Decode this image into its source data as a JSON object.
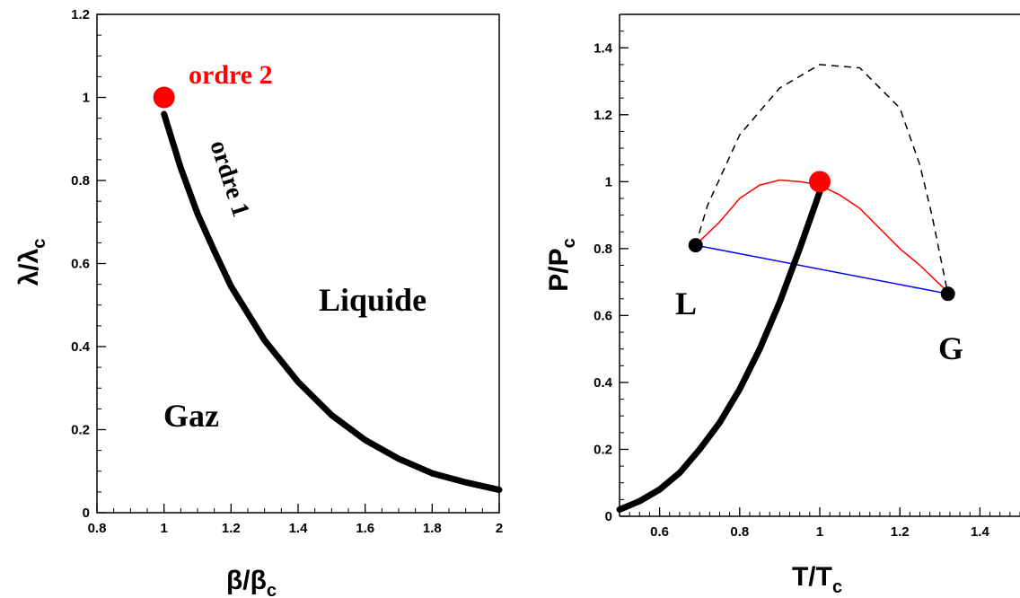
{
  "chart_data": [
    {
      "type": "line",
      "xlabel": {
        "main": "β/β",
        "sub": "c"
      },
      "ylabel": {
        "main": "λ/λ",
        "sub": "c"
      },
      "xlim": [
        0.8,
        2.0
      ],
      "ylim": [
        0,
        1.2
      ],
      "xticks": [
        "0.8",
        "1",
        "1.2",
        "1.4",
        "1.6",
        "1.8",
        "2"
      ],
      "yticks": [
        "0",
        "0.2",
        "0.4",
        "0.6",
        "0.8",
        "1",
        "1.2"
      ],
      "colors": {
        "curve": "#000000",
        "critical_point": "#ff0000"
      },
      "series": [
        {
          "role": "first-order transition line",
          "x": [
            1.0,
            1.05,
            1.1,
            1.15,
            1.2,
            1.3,
            1.4,
            1.5,
            1.6,
            1.7,
            1.8,
            1.9,
            2.0
          ],
          "y": [
            0.96,
            0.83,
            0.72,
            0.63,
            0.545,
            0.415,
            0.315,
            0.235,
            0.175,
            0.13,
            0.095,
            0.073,
            0.055
          ]
        }
      ],
      "points": [
        {
          "x": 1.0,
          "y": 1.0,
          "color": "#ff0000"
        }
      ],
      "annotations": {
        "critical": "ordre 2",
        "line": "ordre 1",
        "region_liquid": "Liquide",
        "region_gas": "Gaz"
      }
    },
    {
      "type": "line",
      "xlabel": {
        "main": "T/T",
        "sub": "c"
      },
      "ylabel": {
        "main": "P/P",
        "sub": "c"
      },
      "xlim": [
        0.5,
        1.5
      ],
      "ylim": [
        0,
        1.5
      ],
      "xticks": [
        "0.6",
        "0.8",
        "1",
        "1.2",
        "1.4"
      ],
      "yticks": [
        "0",
        "0.2",
        "0.4",
        "0.6",
        "0.8",
        "1",
        "1.2",
        "1.4"
      ],
      "colors": {
        "coexistence": "#000000",
        "red_curve": "#ff0000",
        "tie_line": "#0000ff",
        "dashed": "#000000",
        "critical_point": "#ff0000"
      },
      "series": [
        {
          "role": "coexistence curve",
          "x": [
            0.5,
            0.55,
            0.6,
            0.65,
            0.7,
            0.75,
            0.8,
            0.85,
            0.9,
            0.95,
            1.0
          ],
          "y": [
            0.02,
            0.045,
            0.08,
            0.13,
            0.2,
            0.28,
            0.38,
            0.5,
            0.64,
            0.8,
            0.97
          ]
        },
        {
          "role": "red curve",
          "x": [
            0.69,
            0.75,
            0.8,
            0.85,
            0.9,
            0.95,
            1.0,
            1.05,
            1.1,
            1.15,
            1.2,
            1.25,
            1.32
          ],
          "y": [
            0.81,
            0.88,
            0.95,
            0.99,
            1.005,
            1.0,
            0.99,
            0.96,
            0.92,
            0.86,
            0.8,
            0.75,
            0.67
          ]
        },
        {
          "role": "tie line",
          "x": [
            0.69,
            1.32
          ],
          "y": [
            0.81,
            0.665
          ]
        },
        {
          "role": "dashed envelope",
          "x": [
            0.69,
            0.72,
            0.8,
            0.9,
            1.0,
            1.1,
            1.2,
            1.25,
            1.28,
            1.32
          ],
          "y": [
            0.81,
            0.93,
            1.14,
            1.28,
            1.35,
            1.34,
            1.22,
            1.05,
            0.9,
            0.665
          ]
        }
      ],
      "points": [
        {
          "label": "L",
          "x": 0.69,
          "y": 0.81,
          "color": "#000000"
        },
        {
          "label": "G",
          "x": 1.32,
          "y": 0.665,
          "color": "#000000"
        },
        {
          "label": "",
          "x": 1.0,
          "y": 1.0,
          "color": "#ff0000"
        }
      ],
      "annotations": {
        "point_L": "L",
        "point_G": "G"
      }
    }
  ]
}
